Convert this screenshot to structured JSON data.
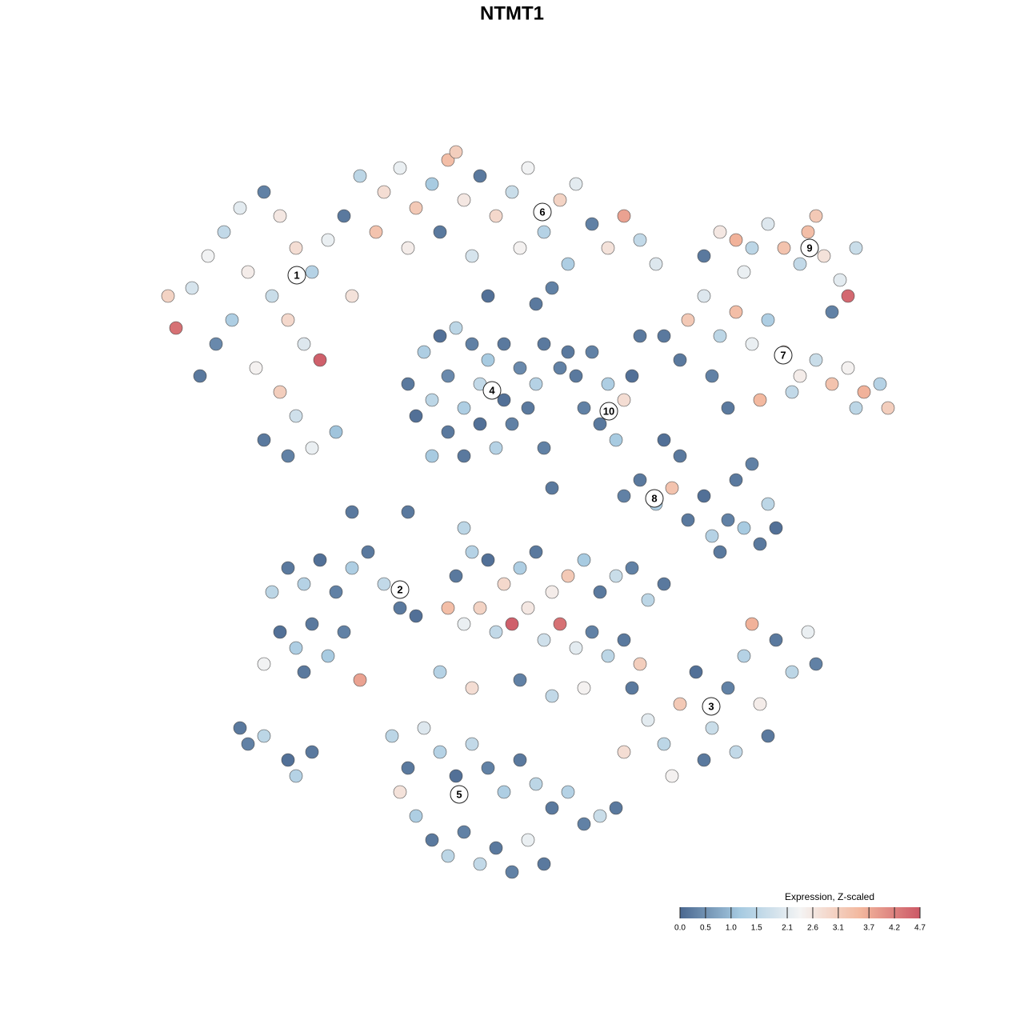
{
  "chart_data": {
    "type": "scatter",
    "title": "NTMT1",
    "x": [
      -40,
      -38,
      -36,
      -34,
      -31,
      -29,
      -27,
      -25,
      -23,
      -21,
      -33,
      -30,
      -28,
      -26,
      -24,
      -35,
      -37,
      -42,
      -32,
      -29,
      -27,
      -31,
      -28,
      -25,
      -22,
      -39,
      -43,
      -20,
      -19,
      -16,
      -14,
      -12,
      -10,
      -8,
      -6,
      -4,
      -2,
      0,
      2,
      4,
      6,
      8,
      10,
      12,
      14,
      16,
      18,
      -17,
      -13,
      -9,
      -5,
      1,
      7,
      -7,
      -3,
      3,
      5,
      -13,
      -11,
      -9,
      -7,
      -5,
      -3,
      -1,
      1,
      3,
      -12,
      -10,
      -8,
      -6,
      -4,
      -2,
      0,
      2,
      -8,
      -4,
      -1,
      -6,
      -10,
      4,
      6,
      8,
      10,
      12,
      14,
      11,
      13,
      15,
      9,
      7,
      16,
      22,
      24,
      26,
      28,
      30,
      32,
      34,
      36,
      38,
      40,
      42,
      44,
      46,
      47,
      35,
      31,
      21,
      25,
      19,
      27,
      43,
      24,
      26,
      28,
      30,
      32,
      34,
      36,
      37,
      39,
      41,
      40,
      42,
      29,
      38,
      43,
      14,
      16,
      18,
      20,
      22,
      24,
      25,
      27,
      29,
      31,
      33,
      28,
      30,
      21,
      19,
      26,
      32,
      -30,
      -28,
      -26,
      -24,
      -22,
      -20,
      -18,
      -16,
      -14,
      -29,
      -27,
      -25,
      -23,
      -21,
      -31,
      -26,
      -19,
      -12,
      -7,
      -5,
      -3,
      -1,
      1,
      3,
      5,
      7,
      9,
      11,
      13,
      15,
      17,
      19,
      -8,
      -6,
      -4,
      -2,
      0,
      2,
      4,
      6,
      8,
      10,
      12,
      14,
      16,
      -9,
      -5,
      1,
      5,
      9,
      15,
      17,
      19,
      21,
      23,
      25,
      27,
      29,
      31,
      33,
      35,
      37,
      38,
      28,
      24,
      20,
      32,
      30,
      14,
      -15,
      -13,
      -11,
      -9,
      -7,
      -5,
      -3,
      -1,
      1,
      3,
      5,
      7,
      9,
      11,
      13,
      -12,
      -10,
      -8,
      -6,
      -4,
      -2,
      0,
      2,
      4,
      -14,
      -34,
      -33,
      -31,
      -28,
      -27,
      -25,
      -20,
      -13,
      -6,
      5,
      4
    ],
    "y": [
      28,
      32,
      35,
      38,
      40,
      37,
      33,
      30,
      34,
      37,
      30,
      27,
      24,
      21,
      19,
      24,
      21,
      23,
      18,
      15,
      12,
      9,
      7,
      8,
      10,
      17,
      27,
      27,
      42,
      40,
      43,
      38,
      41,
      44,
      39,
      42,
      37,
      40,
      43,
      35,
      39,
      41,
      36,
      33,
      37,
      34,
      31,
      35,
      33,
      35,
      32,
      33,
      31,
      45,
      27,
      26,
      28,
      16,
      20,
      22,
      23,
      21,
      19,
      21,
      18,
      16,
      12,
      14,
      10,
      13,
      11,
      8,
      11,
      13,
      17,
      16,
      14,
      7,
      7,
      21,
      18,
      17,
      20,
      16,
      14,
      11,
      9,
      17,
      13,
      20,
      22,
      24,
      27,
      22,
      25,
      21,
      24,
      20,
      17,
      19,
      16,
      18,
      15,
      16,
      13,
      15,
      14,
      19,
      17,
      22,
      13,
      13,
      32,
      35,
      34,
      33,
      36,
      33,
      31,
      35,
      32,
      29,
      25,
      27,
      30,
      37,
      33,
      2,
      4,
      1,
      3,
      -1,
      2,
      -3,
      -1,
      -2,
      -4,
      -2,
      4,
      6,
      7,
      9,
      -5,
      1,
      -10,
      -7,
      -9,
      -6,
      -10,
      -7,
      -5,
      -9,
      -12,
      -15,
      -17,
      -14,
      -18,
      -15,
      -19,
      -20,
      -21,
      -13,
      -8,
      -5,
      -6,
      -9,
      -7,
      -5,
      -10,
      -8,
      -6,
      -10,
      -8,
      -7,
      -11,
      -9,
      -12,
      -14,
      -12,
      -15,
      -14,
      -12,
      -16,
      -14,
      -17,
      -15,
      -18,
      -16,
      -19,
      -20,
      -22,
      -21,
      -23,
      -22,
      -22,
      -26,
      -29,
      -24,
      -20,
      -27,
      -22,
      -18,
      -24,
      -16,
      -20,
      -15,
      -19,
      -30,
      -31,
      -33,
      -28,
      -14,
      -30,
      -28,
      -32,
      -27,
      -30,
      -33,
      -29,
      -32,
      -35,
      -31,
      -34,
      -37,
      -35,
      -39,
      -38,
      -37,
      -38,
      -41,
      -43,
      -40,
      -44,
      -42,
      -45,
      -41,
      -44,
      -35,
      -27,
      -29,
      -28,
      -31,
      -33,
      -30,
      0,
      0,
      -2,
      3,
      8
    ],
    "values": [
      1.9,
      2.3,
      1.6,
      2.1,
      0.3,
      2.6,
      2.8,
      1.4,
      2.2,
      0.2,
      2.5,
      1.7,
      2.9,
      2.0,
      4.6,
      1.3,
      0.4,
      4.4,
      2.4,
      3.1,
      1.8,
      0.2,
      0.3,
      2.2,
      1.1,
      0.2,
      3.0,
      2.7,
      1.5,
      2.8,
      2.2,
      3.2,
      1.2,
      3.4,
      2.6,
      0.2,
      2.9,
      1.7,
      2.3,
      1.4,
      3.0,
      2.1,
      0.3,
      2.7,
      3.8,
      1.6,
      2.0,
      3.3,
      2.5,
      0.2,
      1.9,
      2.4,
      1.3,
      3.1,
      0.1,
      0.2,
      0.3,
      0.2,
      1.3,
      0.1,
      1.5,
      0.3,
      1.2,
      0.2,
      0.4,
      1.4,
      0.1,
      1.5,
      0.2,
      1.3,
      0.1,
      1.4,
      0.3,
      0.2,
      0.4,
      1.6,
      0.1,
      0.2,
      1.2,
      0.2,
      0.3,
      0.2,
      0.3,
      1.3,
      2.8,
      0.2,
      1.2,
      0.1,
      0.3,
      0.2,
      0.2,
      3.2,
      2.0,
      1.5,
      3.4,
      2.2,
      1.3,
      2.9,
      2.5,
      1.7,
      3.3,
      2.4,
      3.6,
      1.4,
      3.1,
      1.6,
      3.5,
      0.2,
      0.3,
      0.2,
      0.2,
      1.5,
      0.2,
      2.6,
      3.6,
      1.5,
      2.0,
      3.3,
      1.6,
      3.4,
      2.7,
      2.1,
      0.3,
      4.5,
      2.2,
      3.2,
      1.7,
      0.3,
      0.2,
      1.3,
      3.3,
      0.2,
      0.1,
      1.4,
      0.3,
      1.2,
      0.2,
      0.1,
      0.2,
      0.3,
      0.2,
      0.1,
      0.2,
      1.5,
      1.5,
      0.2,
      1.4,
      0.1,
      0.3,
      1.3,
      0.2,
      1.6,
      0.2,
      0.1,
      1.3,
      0.2,
      1.2,
      0.3,
      2.3,
      0.2,
      3.8,
      0.1,
      0.2,
      1.4,
      0.1,
      2.9,
      1.3,
      0.2,
      2.5,
      3.2,
      1.2,
      0.2,
      1.7,
      0.3,
      1.5,
      0.2,
      3.4,
      2.2,
      3.0,
      1.6,
      4.6,
      2.6,
      1.8,
      4.4,
      2.1,
      0.3,
      1.5,
      0.2,
      3.1,
      1.4,
      2.8,
      0.3,
      1.6,
      2.4,
      0.2,
      2.1,
      1.5,
      3.2,
      0.1,
      1.7,
      0.3,
      1.4,
      2.5,
      0.2,
      1.5,
      2.2,
      0.3,
      1.6,
      0.2,
      2.4,
      0.2,
      3.6,
      2.8,
      1.5,
      0.2,
      2.0,
      1.4,
      0.1,
      1.6,
      0.3,
      1.3,
      0.2,
      1.5,
      0.2,
      1.4,
      0.3,
      1.7,
      0.2,
      1.3,
      0.2,
      1.5,
      0.3,
      1.6,
      0.2,
      0.3,
      2.2,
      0.2,
      2.7,
      0.2,
      0.3,
      1.5,
      0.1,
      1.4,
      0.2,
      0.2,
      0.2,
      1.5,
      0.2,
      0.3
    ],
    "xlim": [
      -46,
      50
    ],
    "ylim": [
      -48,
      48
    ],
    "clusters": [
      {
        "label": "1",
        "x": -26.9,
        "y": 29.6
      },
      {
        "label": "2",
        "x": -14,
        "y": -9.7
      },
      {
        "label": "3",
        "x": 24.9,
        "y": -24.3
      },
      {
        "label": "4",
        "x": -2.5,
        "y": 15.2
      },
      {
        "label": "5",
        "x": -6.6,
        "y": -35.3
      },
      {
        "label": "6",
        "x": 3.8,
        "y": 37.5
      },
      {
        "label": "7",
        "x": 33.9,
        "y": 19.6
      },
      {
        "label": "8",
        "x": 17.8,
        "y": 1.7
      },
      {
        "label": "9",
        "x": 37.2,
        "y": 33
      },
      {
        "label": "10",
        "x": 12.1,
        "y": 12.6
      }
    ],
    "colorbar_title": "Expression, Z-scaled",
    "clim": [
      0,
      4.7
    ],
    "colorbar_ticks": [
      {
        "value": 0,
        "label": "0.0"
      },
      0.5,
      {
        "value": 1,
        "label": "1.0"
      },
      1.5,
      2.1,
      2.6,
      3.1,
      3.7,
      4.2,
      4.7
    ],
    "colors": [
      "#4a6890",
      "#a6cae1",
      "#f4f4f4",
      "#f3b89e",
      "#cc5866"
    ]
  }
}
